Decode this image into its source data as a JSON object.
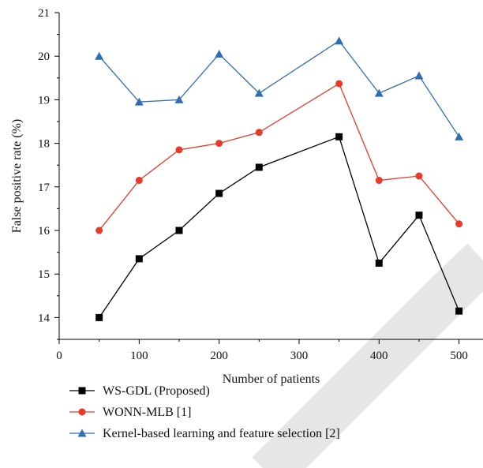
{
  "chart_data": {
    "type": "line",
    "title": "",
    "xlabel": "Number of patients",
    "ylabel": "False positive rate (%)",
    "xlim": [
      0,
      530
    ],
    "ylim": [
      13.5,
      21
    ],
    "xticks": [
      0,
      100,
      200,
      300,
      400,
      500
    ],
    "yticks": [
      14,
      15,
      16,
      17,
      18,
      19,
      20,
      21
    ],
    "x": [
      50,
      100,
      150,
      200,
      250,
      350,
      400,
      450,
      500
    ],
    "series": [
      {
        "name": "WS-GDL (Proposed)",
        "color": "#000000",
        "marker": "square",
        "values": [
          14.0,
          15.35,
          16.0,
          16.85,
          17.45,
          18.15,
          15.25,
          16.35,
          14.15
        ]
      },
      {
        "name": "WONN-MLB [1]",
        "color": "#e8392b",
        "marker": "circle",
        "values": [
          16.0,
          17.15,
          17.85,
          18.0,
          18.25,
          19.37,
          17.15,
          17.25,
          16.15
        ]
      },
      {
        "name": "Kernel-based learning and feature selection [2]",
        "color": "#2f6eb5",
        "marker": "triangle",
        "values": [
          20.0,
          18.95,
          19.0,
          20.05,
          19.15,
          20.35,
          19.15,
          19.55,
          18.15
        ]
      }
    ],
    "legend_position": "bottom"
  }
}
